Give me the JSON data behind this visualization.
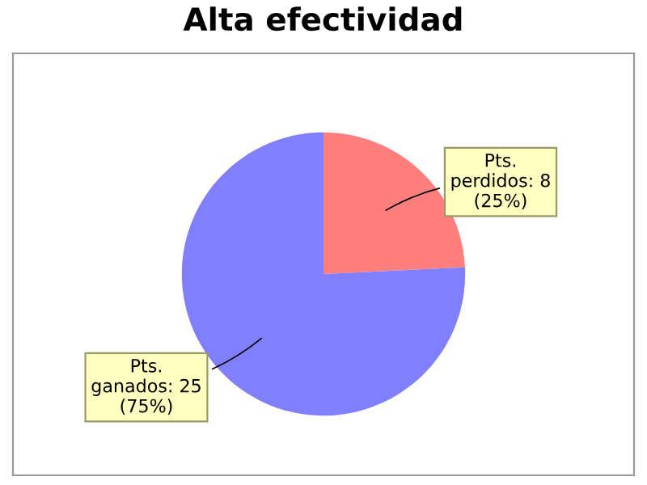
{
  "chart_data": {
    "type": "pie",
    "title": "Alta efectividad",
    "categories": [
      "Pts. perdidos",
      "Pts. ganados"
    ],
    "values": [
      8,
      25
    ],
    "colors": [
      "#ff7f7f",
      "#7f7fff"
    ],
    "value_labels": [
      "8 (25%)",
      "25 (75%)"
    ],
    "legend": false
  }
}
